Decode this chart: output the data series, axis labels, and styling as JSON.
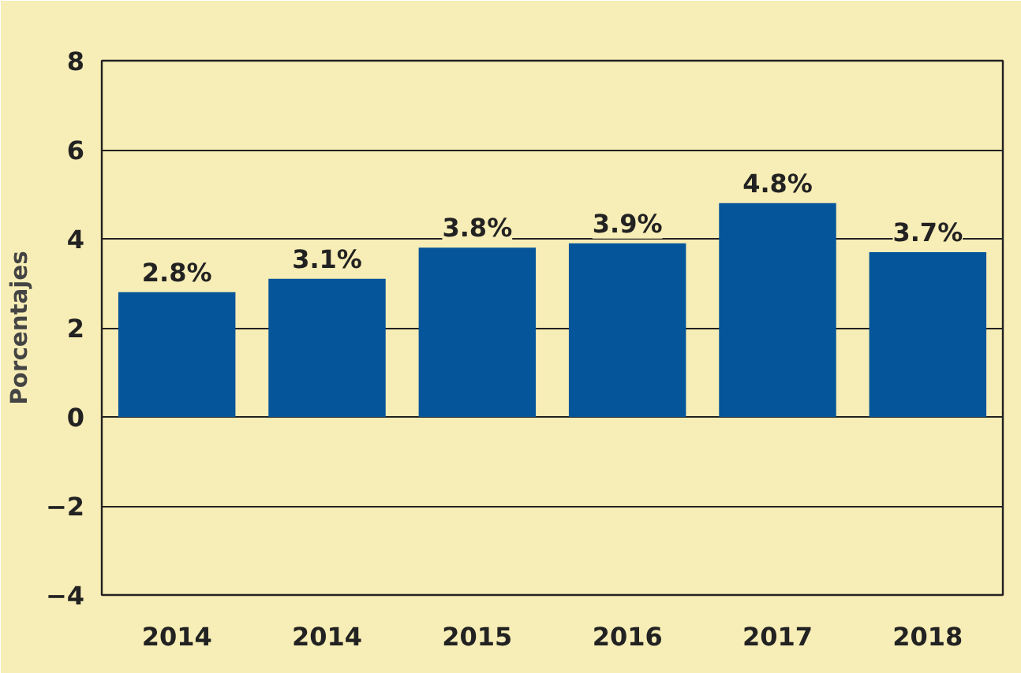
{
  "chart_data": {
    "type": "bar",
    "ylabel": "Porcentajes",
    "categories": [
      "2014",
      "2014",
      "2015",
      "2016",
      "2017",
      "2018"
    ],
    "values": [
      2.8,
      3.1,
      3.8,
      3.9,
      4.8,
      3.7
    ],
    "value_labels": [
      "2.8%",
      "3.1%",
      "3.8%",
      "3.9%",
      "4.8%",
      "3.7%"
    ],
    "color": "#04559a",
    "ylim": [
      -4,
      8
    ],
    "yticks": [
      -4,
      -2,
      0,
      2,
      4,
      6,
      8
    ],
    "grid": "y"
  }
}
